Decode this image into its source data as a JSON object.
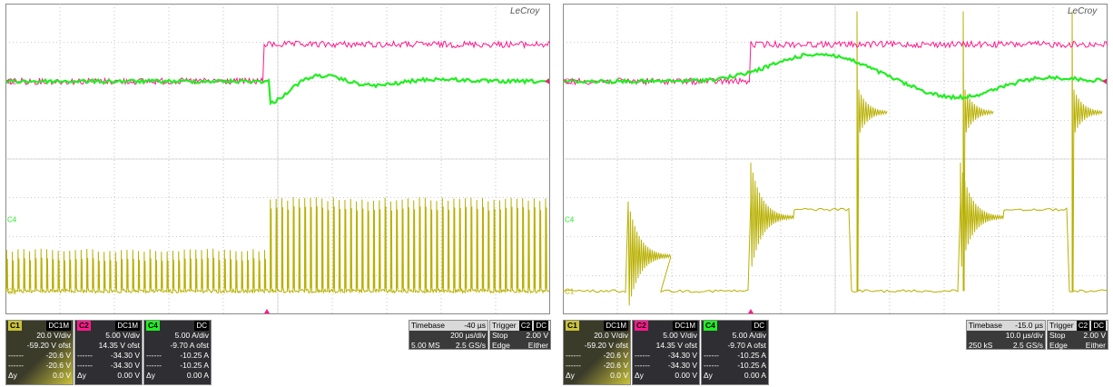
{
  "colors": {
    "c1": "#b8b000",
    "c2": "#ff1a8c",
    "c4": "#22ee22",
    "grid": "#9a9a9a"
  },
  "chart_data": [
    {
      "type": "line",
      "id": "left",
      "logo": "LeCroy",
      "x_divisions": 10,
      "y_divisions": 8,
      "trigger_x_frac": 0.48,
      "marker_labels": {
        "c2": "C2",
        "c4": "C4",
        "c1": "C1"
      },
      "series": [
        {
          "channel": "C2",
          "kind": "step",
          "before_level_div": 3.0,
          "after_level_div": 3.95,
          "step_at_frac": 0.475
        },
        {
          "channel": "C4",
          "kind": "damped",
          "level_div": 3.6,
          "dip_at_frac": 0.5
        },
        {
          "channel": "C1",
          "kind": "pwm",
          "low_level_div": 0.6,
          "high_level_div": 2.9,
          "pulses": 95
        }
      ],
      "channels": [
        {
          "name": "C1",
          "coupling": "DC1M",
          "scale": "20.0 V/div",
          "offset": "-59.20 V ofst",
          "cursor1": "-20.6 V",
          "cursor2": "-20.6 V",
          "dy_label": "Δy",
          "dy": "0.0 V"
        },
        {
          "name": "C2",
          "coupling": "DC1M",
          "scale": "5.00 V/div",
          "offset": "14.35 V ofst",
          "cursor1": "-34.30 V",
          "cursor2": "-34.30 V",
          "dy_label": "Δy",
          "dy": "0.00 V"
        },
        {
          "name": "C4",
          "coupling": "DC",
          "scale": "5.00 A/div",
          "offset": "-9.70 A ofst",
          "cursor1": "-10.25 A",
          "cursor2": "-10.25 A",
          "dy_label": "Δy",
          "dy": "0.00 A"
        }
      ],
      "timebase": {
        "label": "Timebase",
        "delay": "-40 µs",
        "per_div": "200 µs/div",
        "samples": "5.00 MS",
        "rate": "2.5 GS/s"
      },
      "trigger": {
        "label": "Trigger",
        "source": "C2",
        "coupling": "DC",
        "mode": "Stop",
        "level": "2.00 V",
        "type": "Edge",
        "slope": "Either"
      }
    },
    {
      "type": "line",
      "id": "right",
      "logo": "LeCroy",
      "x_divisions": 10,
      "y_divisions": 8,
      "trigger_x_frac": 0.345,
      "marker_labels": {
        "c2": "C2",
        "c4": "C4",
        "c1": "C1"
      },
      "series": [
        {
          "channel": "C2",
          "kind": "step",
          "before_level_div": 3.0,
          "after_level_div": 3.95,
          "step_at_frac": 0.345
        },
        {
          "channel": "C4",
          "kind": "hump",
          "level_div": 3.6
        },
        {
          "channel": "C1",
          "kind": "slow_pulses",
          "low_level_div": 0.6,
          "high_level_div": 2.9,
          "pulses_frac": [
            [
              0.12,
              0.18
            ],
            [
              0.345,
              0.53
            ],
            [
              0.73,
              0.93
            ]
          ]
        }
      ],
      "channels": [
        {
          "name": "C1",
          "coupling": "DC1M",
          "scale": "20.0 V/div",
          "offset": "-59.20 V ofst",
          "cursor1": "-20.6 V",
          "cursor2": "-20.6 V",
          "dy_label": "Δy",
          "dy": "0.0 V"
        },
        {
          "name": "C2",
          "coupling": "DC1M",
          "scale": "5.00 V/div",
          "offset": "14.35 V ofst",
          "cursor1": "-34.30 V",
          "cursor2": "-34.30 V",
          "dy_label": "Δy",
          "dy": "0.00 V"
        },
        {
          "name": "C4",
          "coupling": "DC",
          "scale": "5.00 A/div",
          "offset": "-9.70 A ofst",
          "cursor1": "-10.25 A",
          "cursor2": "-10.25 A",
          "dy_label": "Δy",
          "dy": "0.00 A"
        }
      ],
      "timebase": {
        "label": "Timebase",
        "delay": "-15.0 µs",
        "per_div": "10.0 µs/div",
        "samples": "250 kS",
        "rate": "2.5 GS/s"
      },
      "trigger": {
        "label": "Trigger",
        "source": "C2",
        "coupling": "DC",
        "mode": "Stop",
        "level": "2.00 V",
        "type": "Edge",
        "slope": "Either"
      }
    }
  ]
}
